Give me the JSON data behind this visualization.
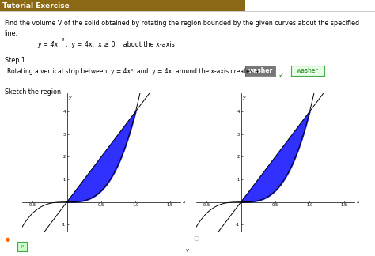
{
  "title_bar_text": "Tutorial Exercise",
  "title_bar_color": "#8B6914",
  "title_bar_text_color": "#ffffff",
  "problem_line1": "Find the volume V of the solid obtained by rotating the region bounded by the given curves about the specified",
  "problem_line2": "line.",
  "step1_label": "Step 1",
  "step1_desc": "Rotating a vertical strip between  y = 4x³  and  y = 4x  around the x-axis creates a",
  "washer_text": "washer",
  "sketch_text": "Sketch the region.",
  "xlim": [
    -0.65,
    1.65
  ],
  "ylim": [
    -1.3,
    4.8
  ],
  "xticks": [
    -0.5,
    0.5,
    1.0,
    1.5
  ],
  "yticks": [
    -1,
    1,
    2,
    3,
    4
  ],
  "fill_color": "#1a1aff",
  "fill_alpha": 0.9,
  "line_color": "#000000",
  "bg_color": "#ffffff",
  "separator_color": "#cccccc"
}
